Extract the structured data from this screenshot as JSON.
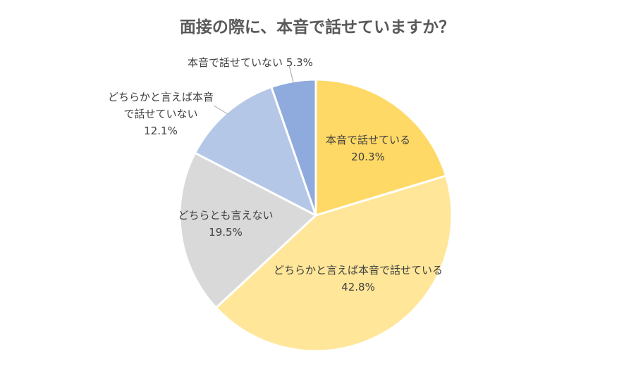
{
  "chart_data": {
    "type": "pie",
    "title": "面接の際に、本音で話せていますか？",
    "slices": [
      {
        "label_lines": [
          "本音で話せている"
        ],
        "value_label": "20.3%",
        "value": 20.3,
        "color": "#FFD966"
      },
      {
        "label_lines": [
          "どちらかと言えば本音で話せている"
        ],
        "value_label": "42.8%",
        "value": 42.8,
        "color": "#FFE699"
      },
      {
        "label_lines": [
          "どちらとも言えない"
        ],
        "value_label": "19.5%",
        "value": 19.5,
        "color": "#D9D9D9"
      },
      {
        "label_lines": [
          "どちらかと言えば本音",
          "で話せていない"
        ],
        "value_label": "12.1%",
        "value": 12.1,
        "color": "#B4C7E7"
      },
      {
        "label_lines": [
          "本音で話せていない"
        ],
        "value_label": "5.3%",
        "value": 5.3,
        "color": "#8FAADC"
      }
    ],
    "start": "12 o'clock",
    "direction": "clockwise"
  }
}
